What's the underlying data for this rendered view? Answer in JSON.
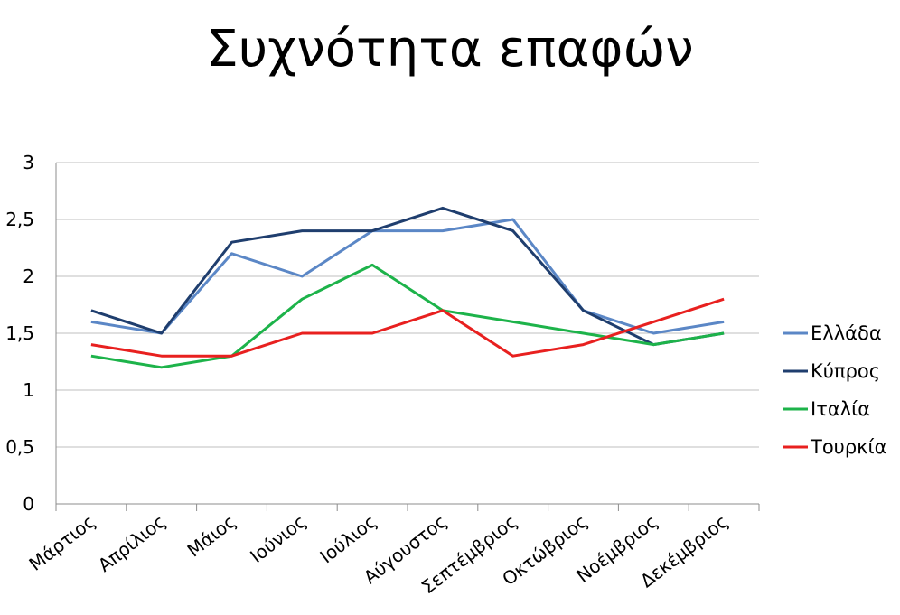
{
  "chart_data": {
    "type": "line",
    "title": "Συχνότητα επαφών",
    "categories": [
      "Μάρτιος",
      "Απρίλιος",
      "Μάιος",
      "Ιούνιος",
      "Ιούλιος",
      "Αύγουστος",
      "Σεπτέμβριος",
      "Οκτώβριος",
      "Νοέμβριος",
      "Δεκέμβριος"
    ],
    "ylim": [
      0,
      3
    ],
    "yticks": [
      "0",
      "0,5",
      "1",
      "1,5",
      "2",
      "2,5",
      "3"
    ],
    "grid": true,
    "legend_position": "right",
    "series": [
      {
        "name": "Ελλάδα",
        "color": "#5b87c6",
        "values": [
          1.6,
          1.5,
          2.2,
          2.0,
          2.4,
          2.4,
          2.5,
          1.7,
          1.5,
          1.6
        ]
      },
      {
        "name": "Κύπρος",
        "color": "#1f3e6e",
        "values": [
          1.7,
          1.5,
          2.3,
          2.4,
          2.4,
          2.6,
          2.4,
          1.7,
          1.4,
          1.5
        ]
      },
      {
        "name": "Ιταλία",
        "color": "#1db34a",
        "values": [
          1.3,
          1.2,
          1.3,
          1.8,
          2.1,
          1.7,
          1.6,
          1.5,
          1.4,
          1.5
        ]
      },
      {
        "name": "Τουρκία",
        "color": "#e8201f",
        "values": [
          1.4,
          1.3,
          1.3,
          1.5,
          1.5,
          1.7,
          1.3,
          1.4,
          1.6,
          1.8
        ]
      }
    ]
  }
}
